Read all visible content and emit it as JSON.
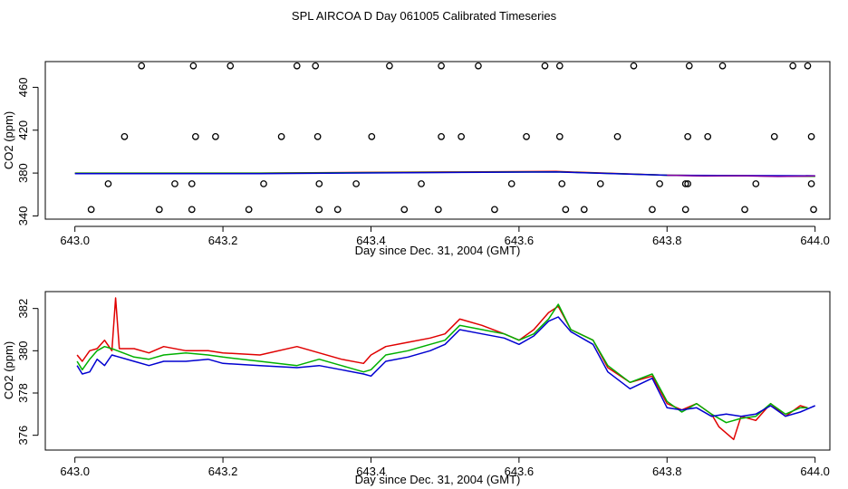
{
  "figure": {
    "title": "SPL AIRCOA D  Day 061005  Calibrated Timeseries",
    "colors": {
      "red": "#e00000",
      "green": "#00b000",
      "blue": "#0000d0",
      "purple": "#8000a0",
      "axes": "#000000"
    }
  },
  "chart_data": [
    {
      "type": "scatter",
      "title": "",
      "xlabel": "Day since Dec. 31, 2004 (GMT)",
      "ylabel": "CO2 (ppm)",
      "xlim": [
        642.96,
        644.02
      ],
      "ylim": [
        337,
        484
      ],
      "xticks": [
        643.0,
        643.2,
        643.4,
        643.6,
        643.8,
        644.0
      ],
      "xtick_labels": [
        "643.0",
        "643.2",
        "643.4",
        "643.6",
        "643.8",
        "644.0"
      ],
      "yticks": [
        340,
        380,
        420,
        460
      ],
      "ytick_labels": [
        "340",
        "380",
        "420",
        "460"
      ],
      "points": [
        [
          643.09,
          480
        ],
        [
          643.16,
          480
        ],
        [
          643.21,
          480
        ],
        [
          643.3,
          480
        ],
        [
          643.325,
          480
        ],
        [
          643.425,
          480
        ],
        [
          643.495,
          480
        ],
        [
          643.545,
          480
        ],
        [
          643.635,
          480
        ],
        [
          643.655,
          480
        ],
        [
          643.755,
          480
        ],
        [
          643.83,
          480
        ],
        [
          643.875,
          480
        ],
        [
          643.97,
          480
        ],
        [
          643.99,
          480
        ],
        [
          643.067,
          414
        ],
        [
          643.163,
          414
        ],
        [
          643.19,
          414
        ],
        [
          643.279,
          414
        ],
        [
          643.328,
          414
        ],
        [
          643.401,
          414
        ],
        [
          643.495,
          414
        ],
        [
          643.522,
          414
        ],
        [
          643.61,
          414
        ],
        [
          643.655,
          414
        ],
        [
          643.733,
          414
        ],
        [
          643.828,
          414
        ],
        [
          643.855,
          414
        ],
        [
          643.945,
          414
        ],
        [
          643.995,
          414
        ],
        [
          643.045,
          370
        ],
        [
          643.135,
          370
        ],
        [
          643.158,
          370
        ],
        [
          643.255,
          370
        ],
        [
          643.33,
          370
        ],
        [
          643.38,
          370
        ],
        [
          643.468,
          370
        ],
        [
          643.59,
          370
        ],
        [
          643.658,
          370
        ],
        [
          643.71,
          370
        ],
        [
          643.79,
          370
        ],
        [
          643.825,
          370
        ],
        [
          643.828,
          370
        ],
        [
          643.92,
          370
        ],
        [
          643.995,
          370
        ],
        [
          643.022,
          346
        ],
        [
          643.114,
          346
        ],
        [
          643.158,
          346
        ],
        [
          643.235,
          346
        ],
        [
          643.33,
          346
        ],
        [
          643.355,
          346
        ],
        [
          643.445,
          346
        ],
        [
          643.491,
          346
        ],
        [
          643.567,
          346
        ],
        [
          643.663,
          346
        ],
        [
          643.688,
          346
        ],
        [
          643.78,
          346
        ],
        [
          643.825,
          346
        ],
        [
          643.905,
          346
        ],
        [
          643.998,
          346
        ]
      ],
      "series": [
        {
          "name": "red",
          "color": "#e00000",
          "x": [
            643.0,
            643.25,
            643.5,
            643.65,
            643.8,
            644.0
          ],
          "y": [
            380,
            380,
            381,
            381.5,
            378,
            377
          ]
        },
        {
          "name": "green",
          "color": "#00b000",
          "x": [
            643.0,
            643.25,
            643.5,
            643.65,
            643.8,
            644.0
          ],
          "y": [
            379.8,
            379.8,
            380.8,
            381.2,
            378,
            377
          ]
        },
        {
          "name": "blue",
          "color": "#0000d0",
          "x": [
            643.0,
            643.25,
            643.5,
            643.65,
            643.8,
            644.0
          ],
          "y": [
            379.5,
            379.5,
            380.5,
            381,
            378,
            377.5
          ]
        },
        {
          "name": "purple",
          "color": "#8000a0",
          "x": [
            643.8,
            643.85,
            643.9,
            643.95,
            644.0
          ],
          "y": [
            378,
            377.2,
            377.5,
            376.8,
            377.3
          ]
        }
      ]
    },
    {
      "type": "line",
      "title": "",
      "xlabel": "Day since Dec. 31, 2004 (GMT)",
      "ylabel": "CO2 (ppm)",
      "xlim": [
        642.96,
        644.02
      ],
      "ylim": [
        375.3,
        382.8
      ],
      "xticks": [
        643.0,
        643.2,
        643.4,
        643.6,
        643.8,
        644.0
      ],
      "xtick_labels": [
        "643.0",
        "643.2",
        "643.4",
        "643.6",
        "643.8",
        "644.0"
      ],
      "yticks": [
        376,
        378,
        380,
        382
      ],
      "ytick_labels": [
        "376",
        "378",
        "380",
        "382"
      ],
      "series": [
        {
          "name": "red",
          "color": "#e00000",
          "x": [
            643.003,
            643.01,
            643.02,
            643.03,
            643.04,
            643.05,
            643.055,
            643.06,
            643.08,
            643.1,
            643.12,
            643.15,
            643.18,
            643.2,
            643.25,
            643.3,
            643.33,
            643.36,
            643.39,
            643.4,
            643.42,
            643.45,
            643.48,
            643.5,
            643.52,
            643.55,
            643.58,
            643.6,
            643.62,
            643.64,
            643.653,
            643.67,
            643.7,
            643.72,
            643.75,
            643.78,
            643.8,
            643.82,
            643.84,
            643.86,
            643.87,
            643.89,
            643.9,
            643.92,
            643.94,
            643.96,
            643.98,
            643.99
          ],
          "y": [
            379.8,
            379.5,
            380.0,
            380.1,
            380.5,
            380.0,
            382.5,
            380.1,
            380.1,
            379.9,
            380.2,
            380.0,
            380.0,
            379.9,
            379.8,
            380.2,
            379.9,
            379.6,
            379.4,
            379.8,
            380.2,
            380.4,
            380.6,
            380.8,
            381.5,
            381.2,
            380.8,
            380.5,
            381.0,
            381.8,
            382.1,
            381.0,
            380.5,
            379.2,
            378.5,
            378.8,
            377.5,
            377.2,
            377.5,
            377.0,
            376.4,
            375.8,
            376.9,
            376.7,
            377.5,
            376.9,
            377.4,
            377.3
          ]
        },
        {
          "name": "green",
          "color": "#00b000",
          "x": [
            643.003,
            643.01,
            643.02,
            643.03,
            643.04,
            643.05,
            643.08,
            643.1,
            643.12,
            643.15,
            643.18,
            643.2,
            643.25,
            643.3,
            643.33,
            643.36,
            643.39,
            643.4,
            643.42,
            643.45,
            643.48,
            643.5,
            643.52,
            643.55,
            643.58,
            643.6,
            643.62,
            643.64,
            643.653,
            643.67,
            643.7,
            643.72,
            643.75,
            643.78,
            643.8,
            643.82,
            643.84,
            643.86,
            643.88,
            643.9,
            643.92,
            643.94,
            643.96,
            643.98,
            643.99
          ],
          "y": [
            379.5,
            379.1,
            379.6,
            380.0,
            380.2,
            380.1,
            379.7,
            379.6,
            379.8,
            379.9,
            379.8,
            379.7,
            379.5,
            379.3,
            379.6,
            379.3,
            379.0,
            379.1,
            379.8,
            380.0,
            380.3,
            380.5,
            381.2,
            381.0,
            380.8,
            380.5,
            380.8,
            381.5,
            382.2,
            381.0,
            380.5,
            379.3,
            378.5,
            378.9,
            377.6,
            377.1,
            377.5,
            377.0,
            376.6,
            376.8,
            376.9,
            377.5,
            377.0,
            377.3,
            377.3
          ]
        },
        {
          "name": "blue",
          "color": "#0000d0",
          "x": [
            643.003,
            643.01,
            643.02,
            643.03,
            643.04,
            643.05,
            643.08,
            643.1,
            643.12,
            643.15,
            643.18,
            643.2,
            643.25,
            643.3,
            643.33,
            643.36,
            643.39,
            643.4,
            643.42,
            643.45,
            643.48,
            643.5,
            643.52,
            643.55,
            643.58,
            643.6,
            643.62,
            643.64,
            643.653,
            643.67,
            643.7,
            643.72,
            643.75,
            643.78,
            643.8,
            643.82,
            643.84,
            643.86,
            643.88,
            643.9,
            643.92,
            643.94,
            643.96,
            643.98,
            644.0
          ],
          "y": [
            379.3,
            378.9,
            379.0,
            379.6,
            379.3,
            379.8,
            379.5,
            379.3,
            379.5,
            379.5,
            379.6,
            379.4,
            379.3,
            379.2,
            379.3,
            379.1,
            378.9,
            378.8,
            379.5,
            379.7,
            380.0,
            380.3,
            381.0,
            380.8,
            380.6,
            380.3,
            380.7,
            381.4,
            381.6,
            380.9,
            380.3,
            379.0,
            378.2,
            378.7,
            377.3,
            377.2,
            377.3,
            376.9,
            377.0,
            376.9,
            377.0,
            377.4,
            376.9,
            377.1,
            377.4
          ]
        }
      ]
    }
  ]
}
